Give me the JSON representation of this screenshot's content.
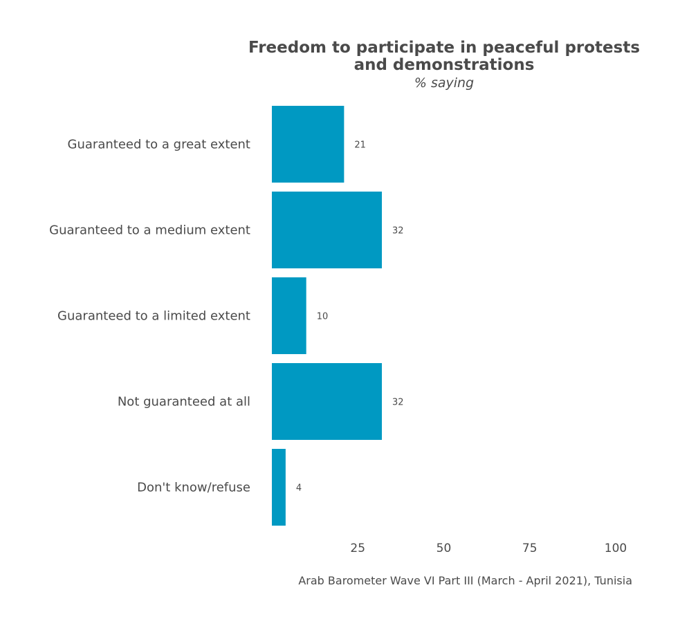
{
  "chart_data": {
    "type": "bar",
    "orientation": "horizontal",
    "title": "Freedom to participate in peaceful protests and demonstrations",
    "title_lines": [
      "Freedom to participate in peaceful protests",
      "and demonstrations"
    ],
    "subtitle": "% saying",
    "categories": [
      "Guaranteed to a great extent",
      "Guaranteed to a medium extent",
      "Guaranteed to a limited extent",
      "Not guaranteed at all",
      "Don't know/refuse"
    ],
    "values": [
      21,
      32,
      10,
      32,
      4
    ],
    "value_labels": [
      "21",
      "32",
      "10",
      "32",
      "4"
    ],
    "xlim": [
      0,
      100
    ],
    "xticks": [
      25,
      50,
      75,
      100
    ],
    "xtick_labels": [
      "25",
      "50",
      "75",
      "100"
    ],
    "grid": false,
    "legend": "none",
    "bar_color": "#0099c2",
    "caption": "Arab Barometer Wave VI Part III (March - April 2021), Tunisia"
  }
}
